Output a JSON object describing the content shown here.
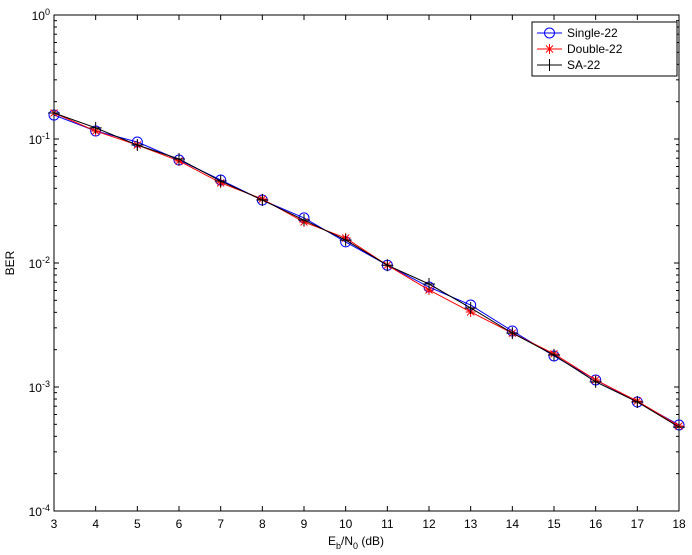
{
  "chart_data": {
    "type": "line",
    "x_label": "E_b/N_0 (dB)",
    "y_label": "BER",
    "x": [
      3,
      4,
      5,
      6,
      7,
      8,
      9,
      10,
      11,
      12,
      13,
      14,
      15,
      16,
      17,
      18
    ],
    "xlim": [
      3,
      18
    ],
    "xticks": [
      3,
      4,
      5,
      6,
      7,
      8,
      9,
      10,
      11,
      12,
      13,
      14,
      15,
      16,
      17,
      18
    ],
    "ylim": [
      0.0001,
      1
    ],
    "y_scale": "log",
    "yticks": [
      {
        "value": 0.0001,
        "label": "10^-4"
      },
      {
        "value": 0.001,
        "label": "10^-3"
      },
      {
        "value": 0.01,
        "label": "10^-2"
      },
      {
        "value": 0.1,
        "label": "10^-1"
      },
      {
        "value": 1,
        "label": "10^0"
      }
    ],
    "legend": "upper right",
    "series": [
      {
        "name": "Single-22",
        "color": "#0000ff",
        "marker": "circle",
        "values": [
          0.156,
          0.116,
          0.0946,
          0.0677,
          0.0467,
          0.0322,
          0.0231,
          0.0148,
          0.0096,
          0.0064,
          0.00458,
          0.00283,
          0.00178,
          0.00114,
          0.000757,
          0.000494
        ]
      },
      {
        "name": "Double-22",
        "color": "#ff0000",
        "marker": "star",
        "values": [
          0.162,
          0.116,
          0.0894,
          0.0665,
          0.0443,
          0.0328,
          0.0214,
          0.0159,
          0.0096,
          0.00606,
          0.00403,
          0.00272,
          0.00185,
          0.00114,
          0.00077,
          0.000485
        ]
      },
      {
        "name": "SA-22",
        "color": "#000000",
        "marker": "plus",
        "values": [
          0.162,
          0.123,
          0.0894,
          0.069,
          0.0458,
          0.0322,
          0.0222,
          0.0153,
          0.0096,
          0.00677,
          0.00434,
          0.00272,
          0.00181,
          0.0011,
          0.000757,
          0.000475
        ]
      }
    ]
  }
}
